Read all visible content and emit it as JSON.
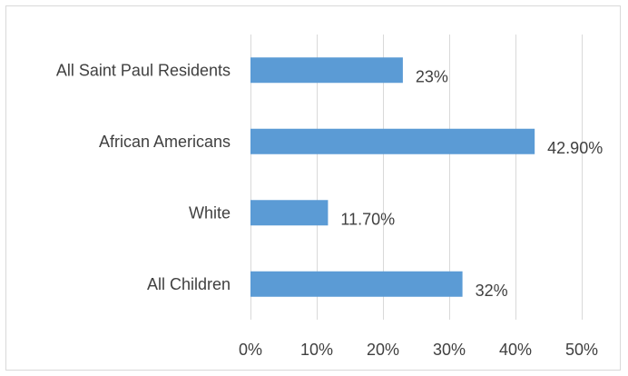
{
  "chart_data": {
    "type": "bar",
    "orientation": "horizontal",
    "categories": [
      "All Saint Paul Residents",
      "African Americans",
      "White",
      "All Children"
    ],
    "values": [
      23,
      42.9,
      11.7,
      32
    ],
    "data_labels": [
      "23%",
      "42.90%",
      "11.70%",
      "32%"
    ],
    "xlim": [
      0,
      50
    ],
    "x_ticks": [
      0,
      10,
      20,
      30,
      40,
      50
    ],
    "x_tick_labels": [
      "0%",
      "10%",
      "20%",
      "30%",
      "40%",
      "50%"
    ],
    "title": "",
    "xlabel": "",
    "ylabel": "",
    "grid": "vertical",
    "legend": "none",
    "bar_color": "#5b9bd5",
    "gridline_color": "#d9d9d9",
    "text_color": "#404040"
  }
}
